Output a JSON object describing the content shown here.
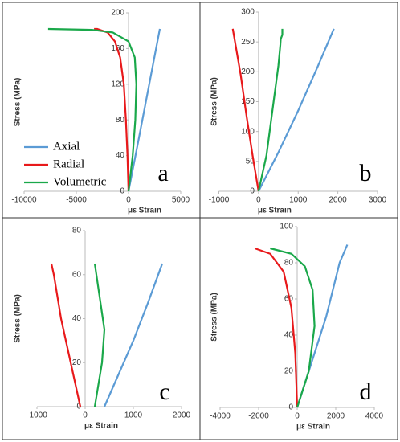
{
  "chart_data": [
    {
      "type": "line",
      "annotation": "a",
      "xlabel": "με Strain",
      "ylabel": "Stress (MPa)",
      "xlim": [
        -10000,
        5000
      ],
      "xticks": [
        -10000,
        -5000,
        0,
        5000
      ],
      "ylim": [
        0,
        200
      ],
      "yticks": [
        0,
        40,
        80,
        120,
        160,
        200
      ],
      "legend": "lower-left",
      "series": [
        {
          "name": "Axial",
          "color": "#5b9bd5",
          "x": [
            0,
            1000,
            2000,
            3000
          ],
          "values": [
            0,
            60,
            121,
            182
          ]
        },
        {
          "name": "Radial",
          "color": "#e8191b",
          "x": [
            0,
            -100,
            -250,
            -450,
            -800,
            -1300,
            -2000,
            -3000,
            -3300
          ],
          "values": [
            0,
            40,
            80,
            120,
            150,
            168,
            178,
            182,
            182
          ]
        },
        {
          "name": "Volumetric",
          "color": "#1aa84a",
          "x": [
            0,
            400,
            650,
            750,
            600,
            0,
            -1500,
            -3500,
            -7700
          ],
          "values": [
            0,
            40,
            80,
            120,
            150,
            168,
            178,
            181,
            182
          ]
        }
      ]
    },
    {
      "type": "line",
      "annotation": "b",
      "xlabel": "με Strain",
      "ylabel": "Stress (MPa)",
      "xlim": [
        -1000,
        3000
      ],
      "xticks": [
        -1000,
        0,
        1000,
        2000,
        3000
      ],
      "ylim": [
        0,
        300
      ],
      "yticks": [
        0,
        50,
        100,
        150,
        200,
        250,
        300
      ],
      "series": [
        {
          "name": "Axial",
          "color": "#5b9bd5",
          "x": [
            0,
            500,
            1000,
            1500,
            1900
          ],
          "values": [
            0,
            65,
            135,
            210,
            272
          ]
        },
        {
          "name": "Radial",
          "color": "#e8191b",
          "x": [
            0,
            -150,
            -300,
            -450,
            -650
          ],
          "values": [
            0,
            60,
            125,
            195,
            272
          ]
        },
        {
          "name": "Volumetric",
          "color": "#1aa84a",
          "x": [
            0,
            200,
            400,
            500,
            550,
            560,
            600,
            600
          ],
          "values": [
            0,
            60,
            160,
            210,
            245,
            255,
            262,
            272
          ]
        }
      ]
    },
    {
      "type": "line",
      "annotation": "c",
      "xlabel": "με Strain",
      "ylabel": "Stress (MPa)",
      "xlim": [
        -1000,
        2000
      ],
      "xticks": [
        -1000,
        0,
        1000,
        2000
      ],
      "ylim": [
        0,
        80
      ],
      "yticks": [
        0,
        20,
        40,
        60,
        80
      ],
      "series": [
        {
          "name": "Axial",
          "color": "#5b9bd5",
          "x": [
            400,
            600,
            1000,
            1300,
            1600
          ],
          "values": [
            0,
            10,
            30,
            47,
            65
          ]
        },
        {
          "name": "Radial",
          "color": "#e8191b",
          "x": [
            -100,
            -300,
            -500,
            -650,
            -700
          ],
          "values": [
            0,
            20,
            40,
            60,
            65
          ]
        },
        {
          "name": "Volumetric",
          "color": "#1aa84a",
          "x": [
            200,
            350,
            400,
            300,
            200
          ],
          "values": [
            0,
            20,
            35,
            50,
            65
          ]
        }
      ]
    },
    {
      "type": "line",
      "annotation": "d",
      "xlabel": "με Strain",
      "ylabel": "Stress (MPa)",
      "xlim": [
        -4000,
        4000
      ],
      "xticks": [
        -4000,
        -2000,
        0,
        2000,
        4000
      ],
      "ylim": [
        0,
        100
      ],
      "yticks": [
        0,
        20,
        40,
        60,
        80,
        100
      ],
      "series": [
        {
          "name": "Axial",
          "color": "#5b9bd5",
          "x": [
            0,
            600,
            1500,
            2200,
            2600
          ],
          "values": [
            0,
            20,
            50,
            80,
            90
          ]
        },
        {
          "name": "Radial",
          "color": "#e8191b",
          "x": [
            0,
            -100,
            -300,
            -700,
            -1400,
            -2200
          ],
          "values": [
            0,
            30,
            55,
            75,
            85,
            88
          ]
        },
        {
          "name": "Volumetric",
          "color": "#1aa84a",
          "x": [
            0,
            600,
            900,
            800,
            400,
            -300,
            -1400
          ],
          "values": [
            0,
            20,
            45,
            65,
            78,
            85,
            88
          ]
        }
      ]
    }
  ]
}
